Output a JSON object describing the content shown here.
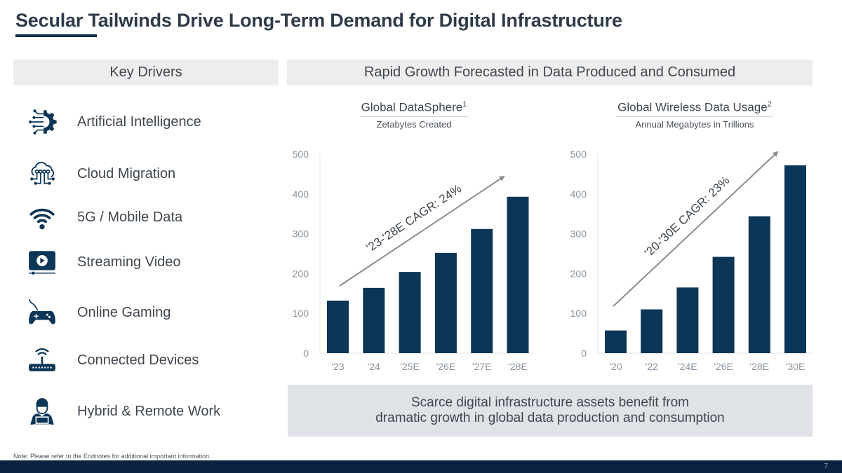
{
  "title": "Secular Tailwinds Drive Long-Term Demand for Digital Infrastructure",
  "left_header": "Key Drivers",
  "right_header": "Rapid Growth Forecasted in Data Produced and Consumed",
  "drivers": [
    {
      "label": "Artificial Intelligence",
      "icon": "ai-gear-circuit-icon"
    },
    {
      "label": "Cloud Migration",
      "icon": "cloud-circuit-icon"
    },
    {
      "label": "5G / Mobile Data",
      "icon": "wifi-icon"
    },
    {
      "label": "Streaming Video",
      "icon": "video-play-icon"
    },
    {
      "label": "Online Gaming",
      "icon": "game-controller-icon"
    },
    {
      "label": "Connected Devices",
      "icon": "router-icon"
    },
    {
      "label": "Hybrid & Remote Work",
      "icon": "person-laptop-icon"
    }
  ],
  "summary": {
    "line1": "Scarce digital infrastructure assets benefit from",
    "line2": "dramatic growth in global data production and consumption"
  },
  "note": "Note: Please refer to the Endnotes for additional important information.",
  "page_number": "7",
  "colors": {
    "bar": "#0c3657",
    "arrow": "#8c8c8c",
    "footer": "#0c2242",
    "header_bg": "#ededed",
    "summary_bg": "#dfe2e6"
  },
  "chart_data": [
    {
      "type": "bar",
      "title": "Global DataSphere",
      "title_sup": "1",
      "subtitle": "Zetabytes Created",
      "categories": [
        "'23",
        "'24",
        "'25E",
        "'26E",
        "'27E",
        "'28E"
      ],
      "values": [
        132,
        164,
        204,
        252,
        312,
        393
      ],
      "yticks": [
        "0",
        "100",
        "200",
        "300",
        "400",
        "500"
      ],
      "ylim": [
        0,
        500
      ],
      "grid": false,
      "annotation": "'23-'28E CAGR: 24%"
    },
    {
      "type": "bar",
      "title": "Global Wireless Data Usage",
      "title_sup": "2",
      "subtitle": "Annual Megabytes in Trillions",
      "categories": [
        "'20",
        "'22",
        "'24E",
        "'26E",
        "'28E",
        "'30E"
      ],
      "values": [
        57,
        110,
        165,
        242,
        344,
        472
      ],
      "yticks": [
        "0",
        "100",
        "200",
        "300",
        "400",
        "500"
      ],
      "ylim": [
        0,
        500
      ],
      "grid": false,
      "annotation": "'20-'30E CAGR: 23%"
    }
  ]
}
